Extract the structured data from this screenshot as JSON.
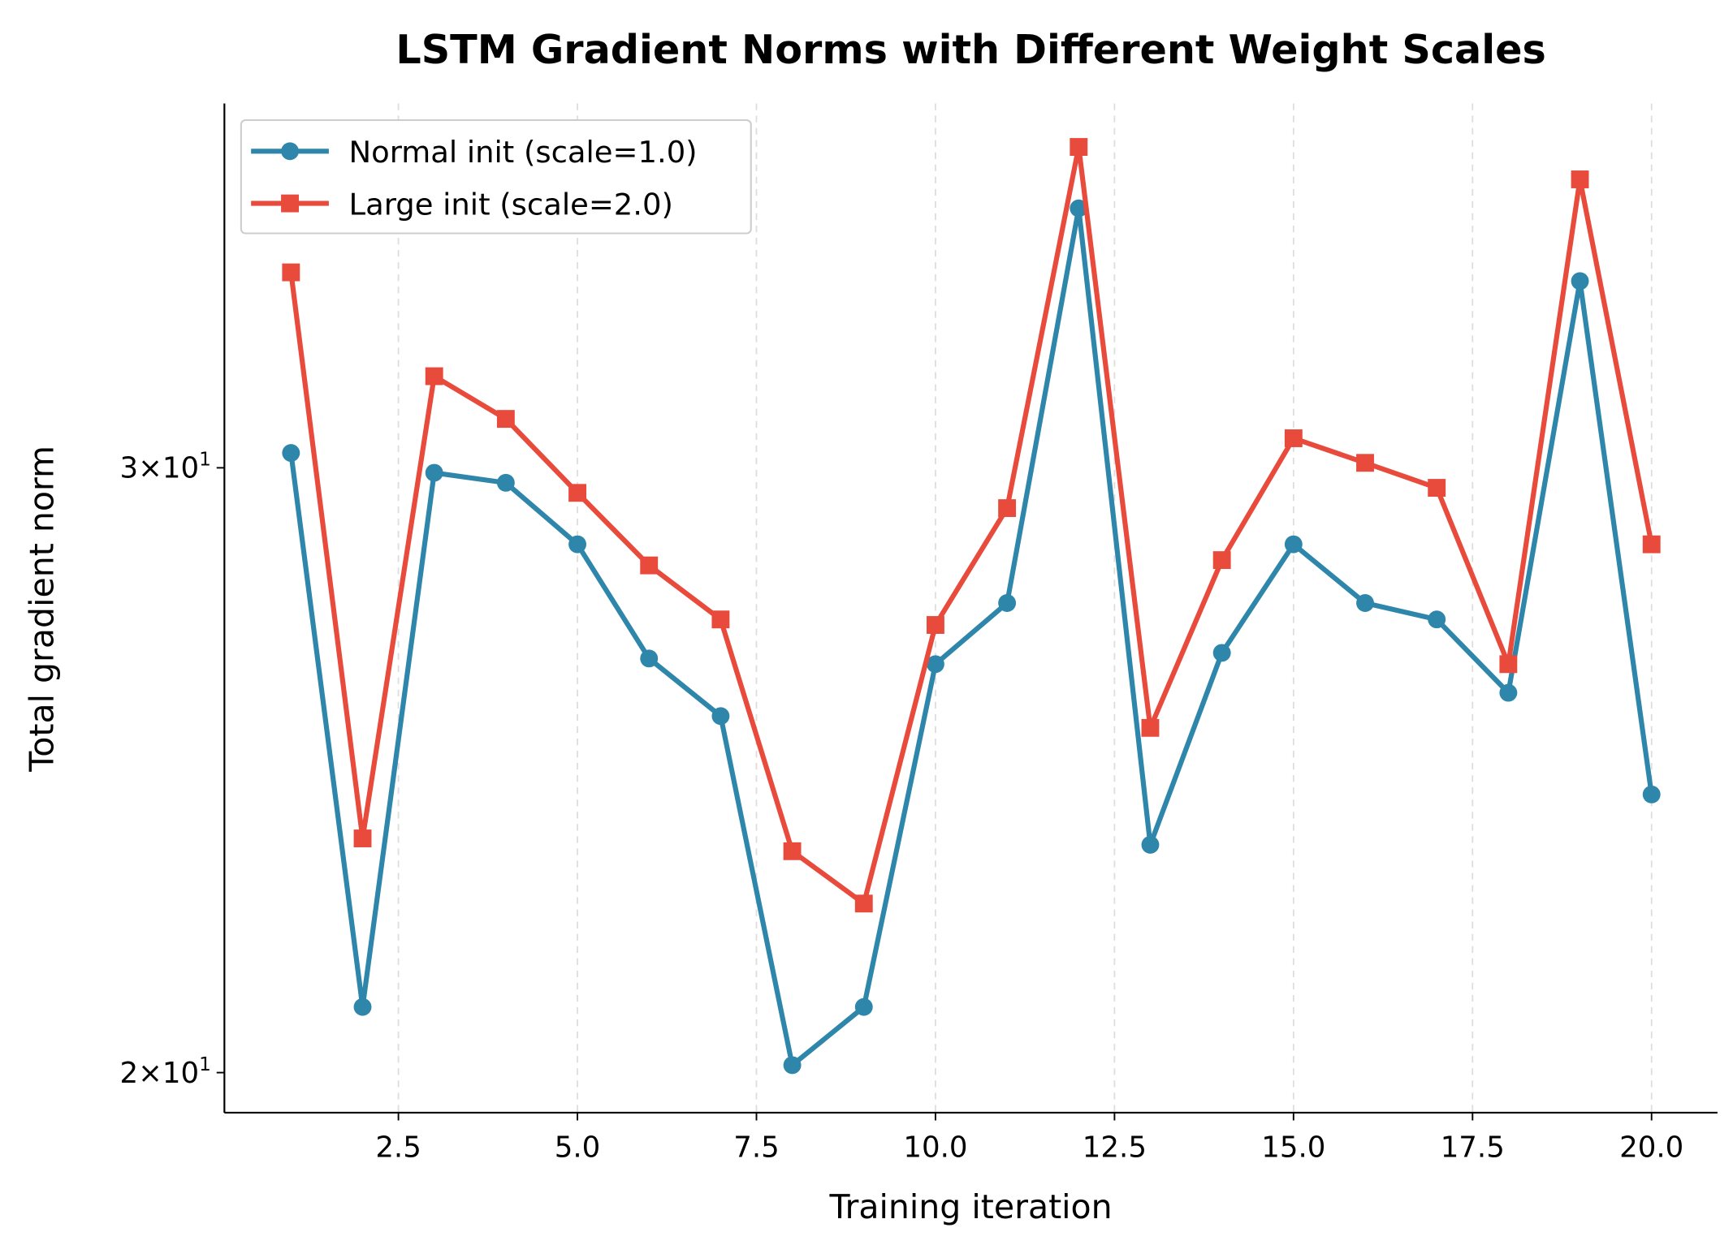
{
  "chart_data": {
    "type": "line",
    "title": "LSTM Gradient Norms with Different Weight Scales",
    "xlabel": "Training iteration",
    "ylabel": "Total gradient norm",
    "yscale": "log",
    "xlim": [
      0.07,
      20.92
    ],
    "ylim": [
      19.47,
      38.3
    ],
    "xticks": [
      2.5,
      5.0,
      7.5,
      10.0,
      12.5,
      15.0,
      17.5,
      20.0
    ],
    "xtick_labels": [
      "2.5",
      "5.0",
      "7.5",
      "10.0",
      "12.5",
      "15.0",
      "17.5",
      "20.0"
    ],
    "yticks": [
      20,
      30
    ],
    "ytick_labels": [
      {
        "mant": "2",
        "exp": "1"
      },
      {
        "mant": "3",
        "exp": "1"
      }
    ],
    "ytick_base": "10",
    "grid": "x-dashed",
    "legend_position": "top-left",
    "x": [
      1,
      2,
      3,
      4,
      5,
      6,
      7,
      8,
      9,
      10,
      11,
      12,
      13,
      14,
      15,
      16,
      17,
      18,
      19,
      20
    ],
    "series": [
      {
        "name": "Normal init (scale=1.0)",
        "color": "#2E86AB",
        "marker": "circle",
        "values": [
          30.3,
          20.9,
          29.9,
          29.7,
          28.5,
          26.4,
          25.4,
          20.1,
          20.9,
          26.3,
          27.4,
          35.7,
          23.3,
          26.5,
          28.5,
          27.4,
          27.1,
          25.8,
          34.0,
          24.1
        ]
      },
      {
        "name": "Large init (scale=2.0)",
        "color": "#E84A3C",
        "marker": "square",
        "values": [
          34.2,
          23.4,
          31.9,
          31.0,
          29.5,
          28.1,
          27.1,
          23.2,
          22.4,
          27.0,
          29.2,
          37.2,
          25.2,
          28.2,
          30.6,
          30.1,
          29.6,
          26.3,
          36.4,
          28.5
        ]
      }
    ]
  }
}
